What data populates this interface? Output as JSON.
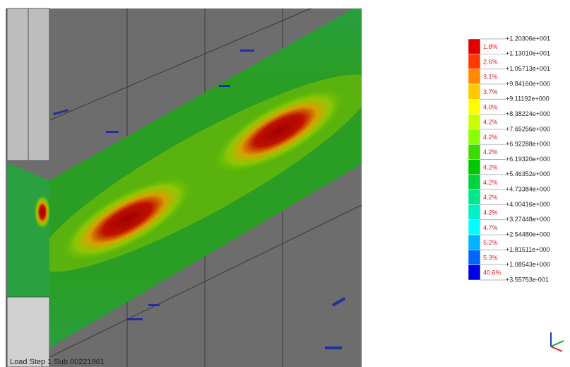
{
  "status": "Load Step 1 Sub 00221961",
  "legend": {
    "levels": [
      "+1.20306e+001",
      "+1.13010e+001",
      "+1.05713e+001",
      "+9.84160e+000",
      "+9.11192e+000",
      "+8.38224e+000",
      "+7.65256e+000",
      "+6.92288e+000",
      "+6.19320e+000",
      "+5.46352e+000",
      "+4.73384e+000",
      "+4.00416e+000",
      "+3.27448e+000",
      "+2.54480e+000",
      "+1.81511e+000",
      "+1.08543e+000",
      "+3.55753e-001"
    ],
    "bands": [
      {
        "percent": "1.8%",
        "color": "#e00000"
      },
      {
        "percent": "2.6%",
        "color": "#ff3a00"
      },
      {
        "percent": "3.1%",
        "color": "#ff8a00"
      },
      {
        "percent": "3.7%",
        "color": "#ffc800"
      },
      {
        "percent": "4.0%",
        "color": "#ffff00"
      },
      {
        "percent": "4.2%",
        "color": "#c8ff00"
      },
      {
        "percent": "4.2%",
        "color": "#8aff00"
      },
      {
        "percent": "4.2%",
        "color": "#3cdc00"
      },
      {
        "percent": "4.2%",
        "color": "#00c800"
      },
      {
        "percent": "4.2%",
        "color": "#00d23c"
      },
      {
        "percent": "4.2%",
        "color": "#00e68c"
      },
      {
        "percent": "4.2%",
        "color": "#00f0c8"
      },
      {
        "percent": "4.7%",
        "color": "#00ffff"
      },
      {
        "percent": "5.2%",
        "color": "#00b4ff"
      },
      {
        "percent": "5.3%",
        "color": "#0064ff"
      },
      {
        "percent": "40.6%",
        "color": "#0000e6"
      }
    ]
  }
}
